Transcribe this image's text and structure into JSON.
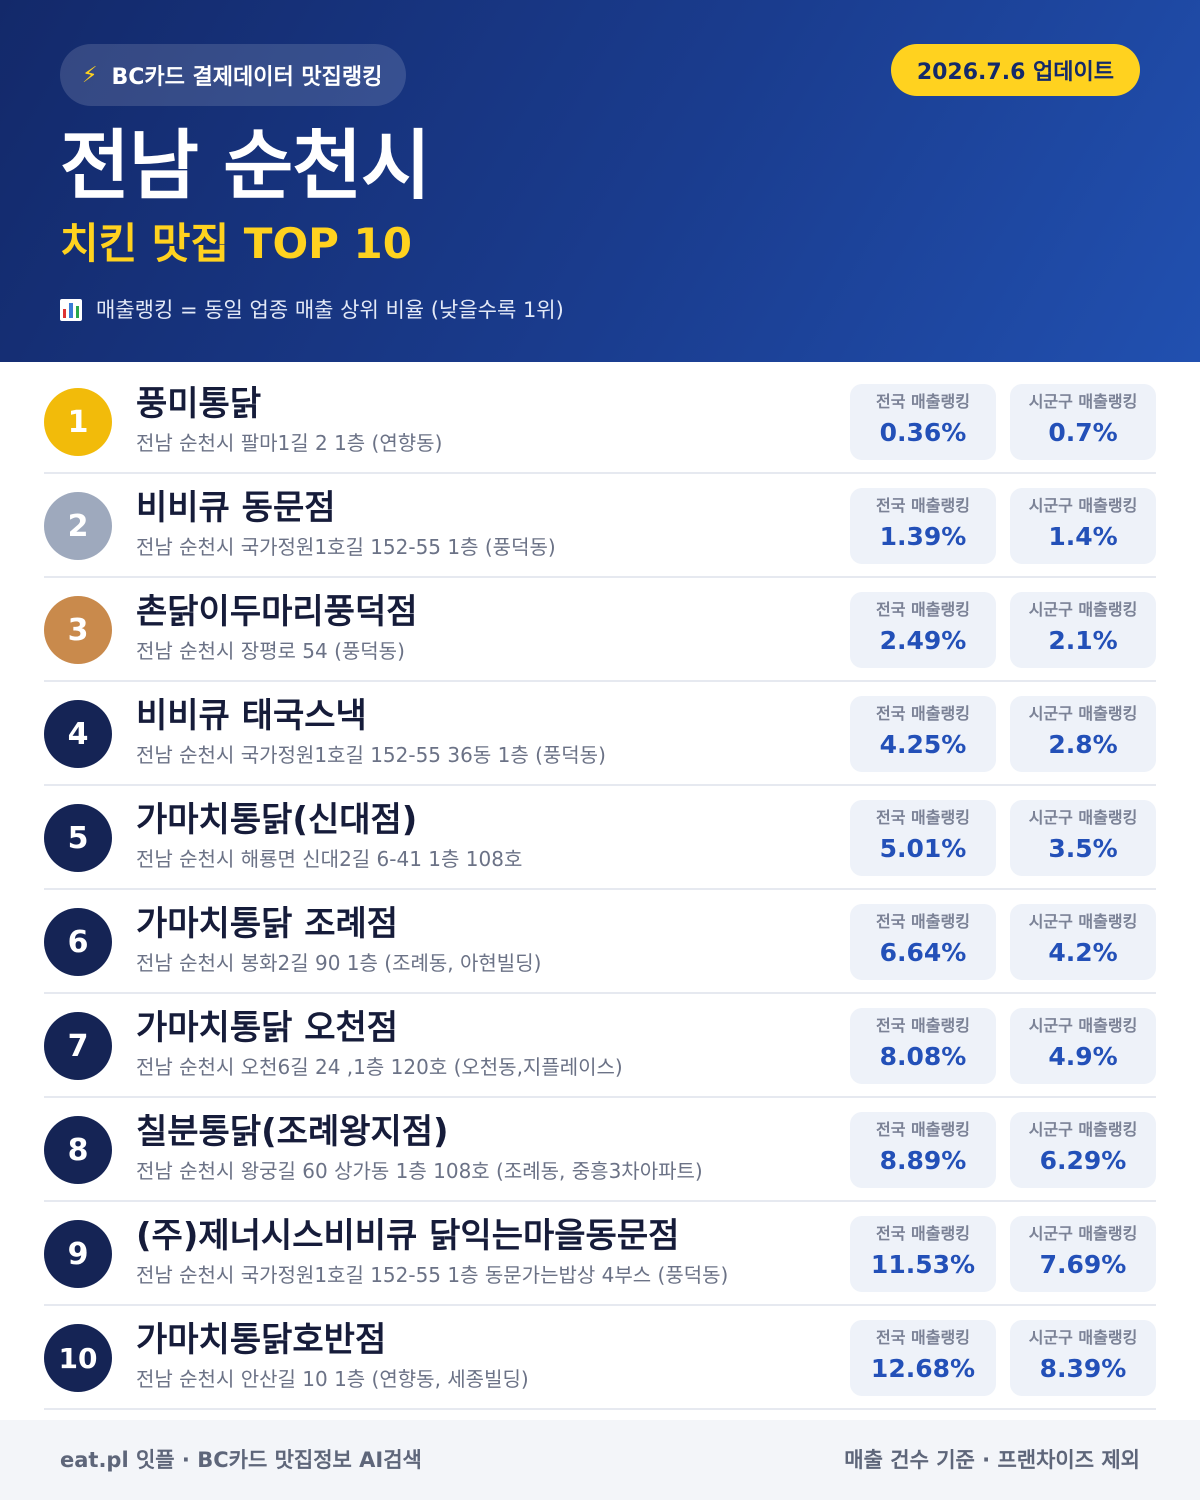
{
  "header": {
    "source_badge": "BC카드 결제데이터 맛집랭킹",
    "update_badge": "2026.7.6 업데이트",
    "title": "전남 순천시",
    "subtitle": "치킨 맛집 TOP 10",
    "note": "매출랭킹 = 동일 업종 매출 상위 비율 (낮을수록 1위)",
    "icons": {
      "badge": "lightning-bolt-icon",
      "note": "bar-chart-icon"
    },
    "colors": {
      "accent": "#ffd21f",
      "navy": "#13296a"
    }
  },
  "stat_labels": {
    "national": "전국 매출랭킹",
    "local": "시군구 매출랭킹"
  },
  "items": [
    {
      "rank": "1",
      "name": "풍미통닭",
      "address": "전남 순천시 팔마1길 2 1층 (연향동)",
      "national": "0.36%",
      "local": "0.7%"
    },
    {
      "rank": "2",
      "name": "비비큐 동문점",
      "address": "전남 순천시 국가정원1호길 152-55 1층 (풍덕동)",
      "national": "1.39%",
      "local": "1.4%"
    },
    {
      "rank": "3",
      "name": "촌닭이두마리풍덕점",
      "address": "전남 순천시 장평로 54 (풍덕동)",
      "national": "2.49%",
      "local": "2.1%"
    },
    {
      "rank": "4",
      "name": "비비큐 태국스낵",
      "address": "전남 순천시 국가정원1호길 152-55 36동 1층 (풍덕동)",
      "national": "4.25%",
      "local": "2.8%"
    },
    {
      "rank": "5",
      "name": "가마치통닭(신대점)",
      "address": "전남 순천시 해룡면 신대2길 6-41 1층 108호",
      "national": "5.01%",
      "local": "3.5%"
    },
    {
      "rank": "6",
      "name": "가마치통닭 조례점",
      "address": "전남 순천시 봉화2길 90 1층 (조례동, 아현빌딩)",
      "national": "6.64%",
      "local": "4.2%"
    },
    {
      "rank": "7",
      "name": "가마치통닭 오천점",
      "address": "전남 순천시 오천6길 24 ,1층 120호 (오천동,지플레이스)",
      "national": "8.08%",
      "local": "4.9%"
    },
    {
      "rank": "8",
      "name": "칠분통닭(조례왕지점)",
      "address": "전남 순천시 왕궁길 60 상가동 1층 108호 (조례동, 중흥3차아파트)",
      "national": "8.89%",
      "local": "6.29%"
    },
    {
      "rank": "9",
      "name": "(주)제너시스비비큐 닭익는마을동문점",
      "address": "전남 순천시 국가정원1호길 152-55 1층 동문가는밥상 4부스 (풍덕동)",
      "national": "11.53%",
      "local": "7.69%"
    },
    {
      "rank": "10",
      "name": "가마치통닭호반점",
      "address": "전남 순천시 안산길 10 1층 (연향동, 세종빌딩)",
      "national": "12.68%",
      "local": "8.39%"
    }
  ],
  "footer": {
    "left": "eat.pl 잇플 · BC카드 맛집정보 AI검색",
    "right": "매출 건수 기준 · 프랜차이즈 제외"
  }
}
